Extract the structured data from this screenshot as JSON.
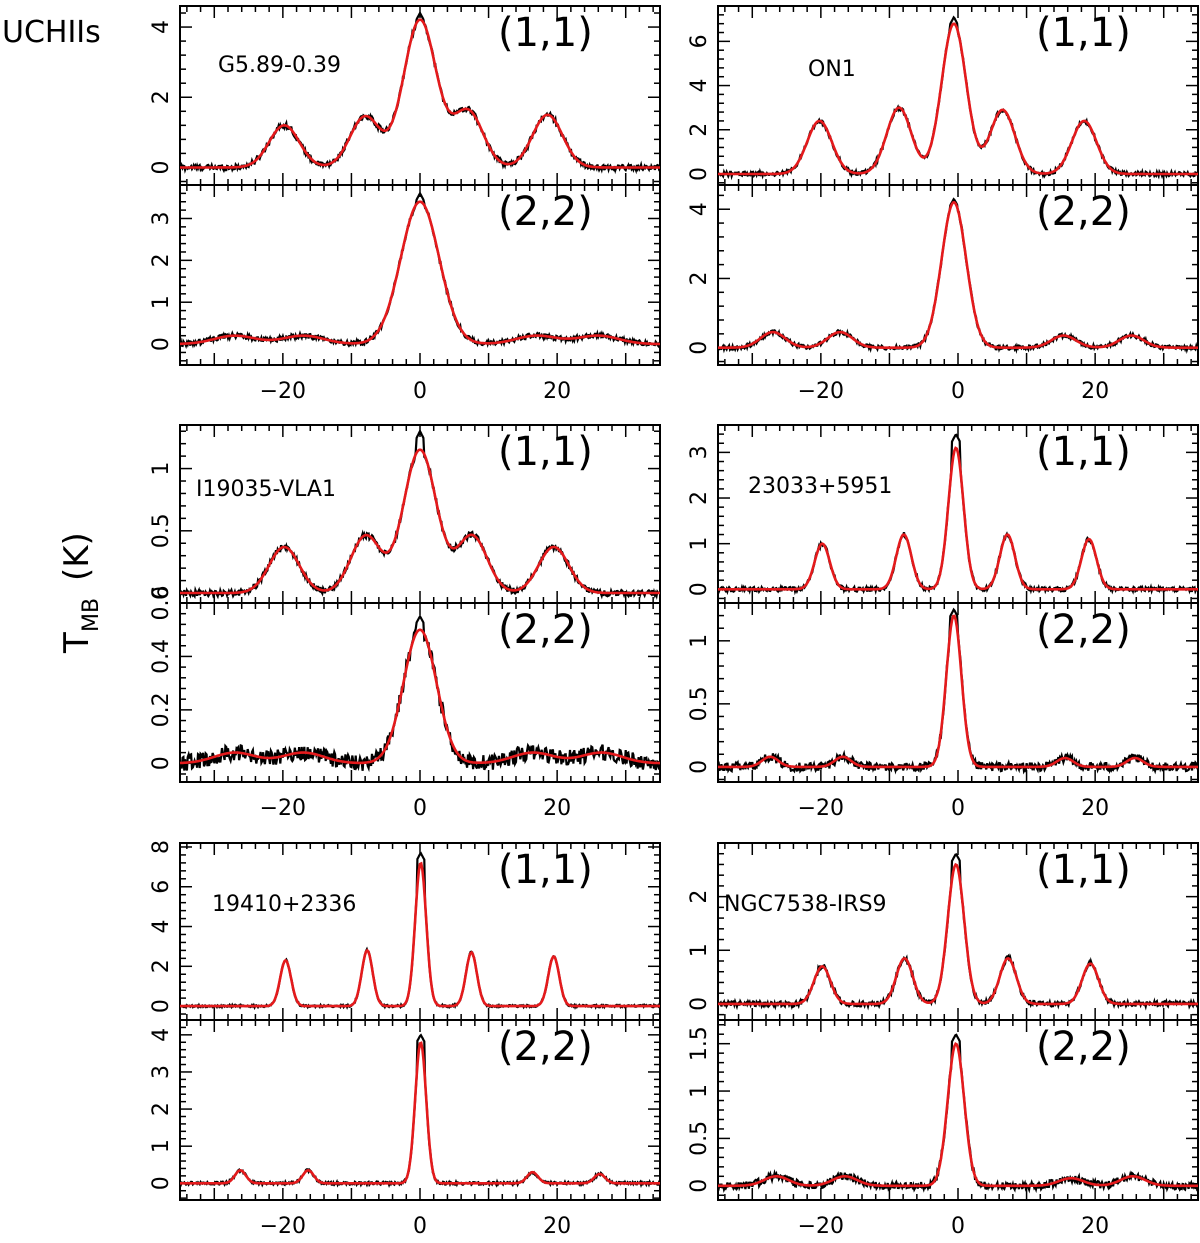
{
  "figure": {
    "group_label": "UCHIIs",
    "ylabel_main": "T",
    "ylabel_sub": "MB",
    "ylabel_unit": "(K)"
  },
  "chart_data": [
    {
      "type": "line",
      "source": "G5.89-0.39",
      "transitions": [
        {
          "label": "(1,1)",
          "yticks": [
            0,
            2,
            4
          ],
          "ylim": [
            -0.5,
            4.6
          ],
          "peak": 4.4,
          "components": [
            {
              "v": -19.8,
              "amp": 1.2,
              "w": 2.2
            },
            {
              "v": -8.0,
              "amp": 1.45,
              "w": 2.2
            },
            {
              "v": 0,
              "amp": 4.2,
              "w": 2.4
            },
            {
              "v": 7.0,
              "amp": 1.6,
              "w": 2.2
            },
            {
              "v": 18.6,
              "amp": 1.5,
              "w": 2.2
            }
          ],
          "noise": 0.08
        },
        {
          "label": "(2,2)",
          "yticks": [
            0,
            1,
            2,
            3
          ],
          "ylim": [
            -0.5,
            3.8
          ],
          "peak": 3.6,
          "components": [
            {
              "v": -27,
              "amp": 0.2,
              "w": 3
            },
            {
              "v": -17,
              "amp": 0.2,
              "w": 3
            },
            {
              "v": 0,
              "amp": 3.4,
              "w": 2.8
            },
            {
              "v": 17,
              "amp": 0.2,
              "w": 3
            },
            {
              "v": 26,
              "amp": 0.2,
              "w": 3
            }
          ],
          "noise": 0.06
        }
      ]
    },
    {
      "type": "line",
      "source": "ON1",
      "transitions": [
        {
          "label": "(1,1)",
          "yticks": [
            0,
            2,
            4,
            6
          ],
          "ylim": [
            -0.5,
            7.6
          ],
          "peak": 7.1,
          "components": [
            {
              "v": -20.2,
              "amp": 2.4,
              "w": 1.8
            },
            {
              "v": -8.6,
              "amp": 3.0,
              "w": 1.8
            },
            {
              "v": -0.6,
              "amp": 6.8,
              "w": 1.8
            },
            {
              "v": 6.5,
              "amp": 2.9,
              "w": 1.8
            },
            {
              "v": 18.4,
              "amp": 2.4,
              "w": 1.8
            }
          ],
          "noise": 0.1
        },
        {
          "label": "(2,2)",
          "yticks": [
            0,
            2,
            4
          ],
          "ylim": [
            -0.5,
            4.7
          ],
          "peak": 4.3,
          "components": [
            {
              "v": -27,
              "amp": 0.45,
              "w": 1.8
            },
            {
              "v": -17.2,
              "amp": 0.45,
              "w": 1.8
            },
            {
              "v": -0.6,
              "amp": 4.2,
              "w": 1.8
            },
            {
              "v": 15.4,
              "amp": 0.35,
              "w": 1.8
            },
            {
              "v": 25.3,
              "amp": 0.35,
              "w": 1.8
            }
          ],
          "noise": 0.06
        }
      ]
    },
    {
      "type": "line",
      "source": "I19035-VLA1",
      "transitions": [
        {
          "label": "(1,1)",
          "yticks": [
            0,
            0.5,
            1
          ],
          "ylim": [
            -0.08,
            1.35
          ],
          "peak": 1.3,
          "components": [
            {
              "v": -19.8,
              "amp": 0.37,
              "w": 2.2
            },
            {
              "v": -7.9,
              "amp": 0.46,
              "w": 2.2
            },
            {
              "v": 0,
              "amp": 1.15,
              "w": 2.4
            },
            {
              "v": 7.6,
              "amp": 0.46,
              "w": 2.2
            },
            {
              "v": 19.5,
              "amp": 0.37,
              "w": 2.2
            }
          ],
          "noise": 0.025
        },
        {
          "label": "(2,2)",
          "yticks": [
            0,
            0.2,
            0.4,
            0.6
          ],
          "ylim": [
            -0.07,
            0.6
          ],
          "peak": 0.55,
          "components": [
            {
              "v": -27,
              "amp": 0.04,
              "w": 3
            },
            {
              "v": -17,
              "amp": 0.04,
              "w": 3
            },
            {
              "v": 0,
              "amp": 0.5,
              "w": 2.4
            },
            {
              "v": 16.5,
              "amp": 0.04,
              "w": 3
            },
            {
              "v": 26.5,
              "amp": 0.04,
              "w": 3
            }
          ],
          "noise": 0.03
        }
      ]
    },
    {
      "type": "line",
      "source": "23033+5951",
      "transitions": [
        {
          "label": "(1,1)",
          "yticks": [
            0,
            1,
            2,
            3
          ],
          "ylim": [
            -0.3,
            3.6
          ],
          "peak": 3.4,
          "components": [
            {
              "v": -19.8,
              "amp": 1.0,
              "w": 1.1
            },
            {
              "v": -7.9,
              "amp": 1.2,
              "w": 1.1
            },
            {
              "v": -0.3,
              "amp": 3.1,
              "w": 1.1
            },
            {
              "v": 7.2,
              "amp": 1.2,
              "w": 1.1
            },
            {
              "v": 19.1,
              "amp": 1.1,
              "w": 1.1
            }
          ],
          "noise": 0.05
        },
        {
          "label": "(2,2)",
          "yticks": [
            0,
            0.5,
            1
          ],
          "ylim": [
            -0.12,
            1.3
          ],
          "peak": 1.25,
          "components": [
            {
              "v": -27.4,
              "amp": 0.08,
              "w": 1.2
            },
            {
              "v": -16.8,
              "amp": 0.08,
              "w": 1.2
            },
            {
              "v": -0.6,
              "amp": 1.2,
              "w": 1.1
            },
            {
              "v": 15.6,
              "amp": 0.07,
              "w": 1.2
            },
            {
              "v": 25.8,
              "amp": 0.07,
              "w": 1.2
            }
          ],
          "noise": 0.035
        }
      ]
    },
    {
      "type": "line",
      "source": "19410+2336",
      "transitions": [
        {
          "label": "(1,1)",
          "yticks": [
            0,
            2,
            4,
            6,
            8
          ],
          "ylim": [
            -0.7,
            8.2
          ],
          "peak": 7.7,
          "components": [
            {
              "v": -19.6,
              "amp": 2.3,
              "w": 0.8
            },
            {
              "v": -7.7,
              "amp": 2.8,
              "w": 0.8
            },
            {
              "v": 0.1,
              "amp": 7.2,
              "w": 0.8
            },
            {
              "v": 7.5,
              "amp": 2.7,
              "w": 0.8
            },
            {
              "v": 19.5,
              "amp": 2.5,
              "w": 0.8
            }
          ],
          "noise": 0.06
        },
        {
          "label": "(2,2)",
          "yticks": [
            0,
            1,
            2,
            3,
            4
          ],
          "ylim": [
            -0.45,
            4.4
          ],
          "peak": 4.0,
          "components": [
            {
              "v": -26.2,
              "amp": 0.35,
              "w": 0.8
            },
            {
              "v": -16.3,
              "amp": 0.35,
              "w": 0.8
            },
            {
              "v": 0.1,
              "amp": 3.8,
              "w": 0.8
            },
            {
              "v": 16.4,
              "amp": 0.3,
              "w": 0.8
            },
            {
              "v": 26.2,
              "amp": 0.25,
              "w": 0.8
            }
          ],
          "noise": 0.04
        }
      ]
    },
    {
      "type": "line",
      "source": "NGC7538-IRS9",
      "transitions": [
        {
          "label": "(1,1)",
          "yticks": [
            0,
            1,
            2
          ],
          "ylim": [
            -0.3,
            3.0
          ],
          "peak": 2.8,
          "components": [
            {
              "v": -19.8,
              "amp": 0.7,
              "w": 1.2
            },
            {
              "v": -7.8,
              "amp": 0.85,
              "w": 1.2
            },
            {
              "v": -0.3,
              "amp": 2.6,
              "w": 1.2
            },
            {
              "v": 7.3,
              "amp": 0.85,
              "w": 1.2
            },
            {
              "v": 19.3,
              "amp": 0.75,
              "w": 1.2
            }
          ],
          "noise": 0.05
        },
        {
          "label": "(2,2)",
          "yticks": [
            0,
            0.5,
            1,
            1.5
          ],
          "ylim": [
            -0.15,
            1.75
          ],
          "peak": 1.6,
          "components": [
            {
              "v": -26.5,
              "amp": 0.1,
              "w": 1.8
            },
            {
              "v": -16.5,
              "amp": 0.1,
              "w": 1.8
            },
            {
              "v": -0.3,
              "amp": 1.5,
              "w": 1.2
            },
            {
              "v": 16.5,
              "amp": 0.08,
              "w": 1.8
            },
            {
              "v": 25.5,
              "amp": 0.1,
              "w": 1.8
            }
          ],
          "noise": 0.04
        }
      ]
    }
  ],
  "xaxis": {
    "xlim": [
      -35,
      35
    ],
    "ticks": [
      -20,
      0,
      20
    ]
  }
}
